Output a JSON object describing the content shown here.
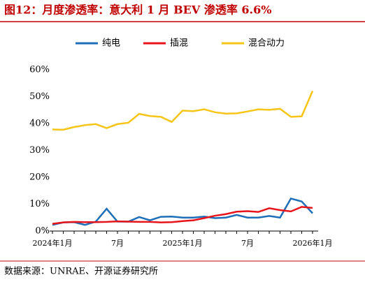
{
  "chart_data": {
    "type": "line",
    "title": "图12：月度渗透率：意大利 1 月 BEV 渗透率 6.6%",
    "source": "数据来源：UNRAE、开源证券研究所",
    "categories": [
      "2024年1月",
      null,
      null,
      null,
      null,
      null,
      "7月",
      null,
      null,
      null,
      null,
      null,
      "2025年1月",
      null,
      null,
      null,
      null,
      null,
      "7月",
      null,
      null,
      null,
      null,
      null,
      "2026年1月"
    ],
    "series": [
      {
        "name": "纯电",
        "color": "#1f6fb8",
        "values": [
          2.3,
          3.2,
          3.3,
          2.3,
          3.5,
          8.3,
          3.5,
          3.5,
          5.2,
          4.0,
          5.3,
          5.4,
          5.0,
          5.0,
          5.4,
          4.8,
          5.0,
          6.0,
          5.0,
          5.0,
          5.6,
          5.0,
          12.1,
          11.0,
          6.6
        ]
      },
      {
        "name": "插混",
        "color": "#e8141b",
        "values": [
          2.7,
          3.2,
          3.4,
          3.3,
          3.3,
          3.4,
          3.6,
          3.5,
          3.4,
          3.4,
          3.2,
          3.3,
          3.7,
          4.0,
          4.8,
          5.7,
          6.3,
          7.2,
          7.4,
          7.1,
          8.5,
          7.8,
          7.3,
          9.0,
          8.6
        ]
      },
      {
        "name": "混合动力",
        "color": "#f5c518",
        "values": [
          37.8,
          37.7,
          38.7,
          39.4,
          39.8,
          38.3,
          39.8,
          40.3,
          43.6,
          42.8,
          42.5,
          40.6,
          44.8,
          44.6,
          45.3,
          44.2,
          43.7,
          43.8,
          44.5,
          45.3,
          45.1,
          45.5,
          42.5,
          42.7,
          52.1
        ]
      }
    ],
    "ylim": [
      0,
      60
    ],
    "yticks": [
      {
        "value": 0,
        "label": "0%"
      },
      {
        "value": 10,
        "label": "10%"
      },
      {
        "value": 20,
        "label": "20%"
      },
      {
        "value": 30,
        "label": "30%"
      },
      {
        "value": 40,
        "label": "40%"
      },
      {
        "value": 50,
        "label": "50%"
      },
      {
        "value": 60,
        "label": "60%"
      }
    ],
    "legend": "top"
  }
}
